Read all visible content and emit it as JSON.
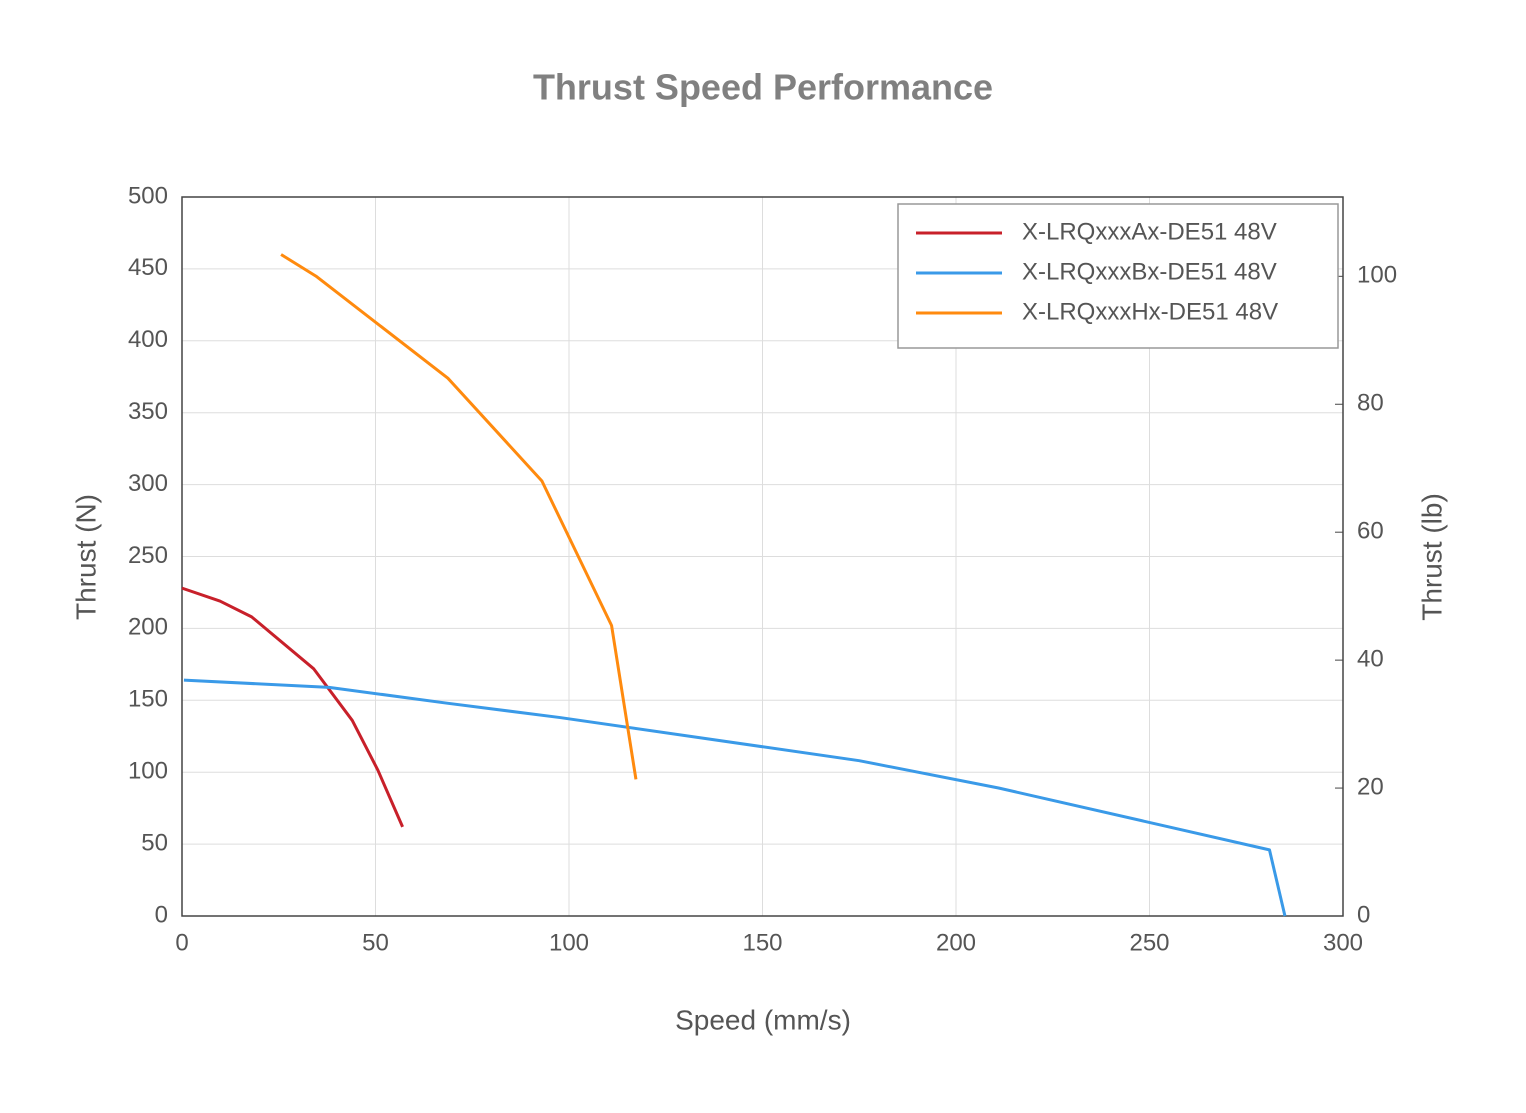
{
  "chart_data": {
    "type": "line",
    "title": "Thrust Speed Performance",
    "x_label": "Speed (mm/s)",
    "y_label": "Thrust (N)",
    "y2_label": "Thrust (lb)",
    "xlim": [
      0,
      300
    ],
    "xticks": [
      0,
      50,
      100,
      150,
      200,
      250,
      300
    ],
    "ylim": [
      0,
      500
    ],
    "yticks": [
      0,
      50,
      100,
      150,
      200,
      250,
      300,
      350,
      400,
      450,
      500
    ],
    "y2lim": [
      0,
      112.4
    ],
    "y2ticks": [
      0,
      20,
      40,
      60,
      80,
      100
    ],
    "grid": true,
    "legend": "upper right",
    "series": [
      {
        "name": "X-LRQxxxAx-DE51 48V",
        "color": "#c8202a",
        "x": [
          0,
          9.8,
          18,
          34,
          44,
          50.6,
          57
        ],
        "values": [
          228,
          219,
          208,
          172,
          136,
          101.5,
          62
        ]
      },
      {
        "name": "X-LRQxxxBx-DE51 48V",
        "color": "#3a9ae8",
        "x": [
          0.5,
          38,
          68.5,
          97.7,
          175,
          211,
          281,
          285
        ],
        "values": [
          164,
          159,
          148,
          138,
          108,
          89,
          46,
          0
        ]
      },
      {
        "name": "X-LRQxxxHx-DE51 48V",
        "color": "#ff8a0e",
        "x": [
          25.6,
          34.6,
          68.7,
          93,
          111,
          117.3
        ],
        "values": [
          460,
          445,
          374,
          302.5,
          202,
          95
        ]
      }
    ]
  }
}
